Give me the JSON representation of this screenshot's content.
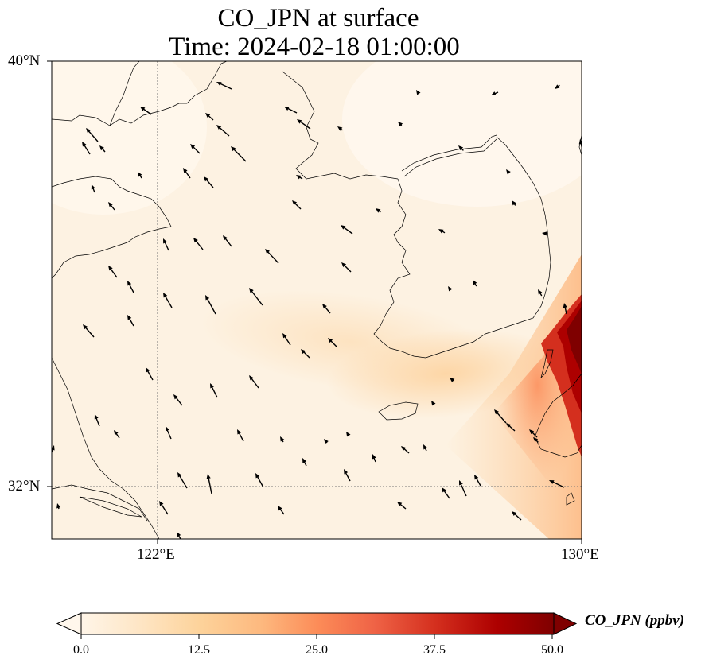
{
  "title": {
    "line1": "CO_JPN at surface",
    "line2": "Time: 2024-02-18 01:00:00"
  },
  "axes": {
    "lat_ticks": [
      "40°N",
      "32°N"
    ],
    "lon_ticks": [
      "122°E",
      "130°E"
    ],
    "lon_range": [
      120,
      130
    ],
    "lat_range": [
      31,
      40
    ],
    "gridlines": "dotted"
  },
  "colorbar": {
    "label": "CO_JPN (ppbv)",
    "tick_labels": [
      "0.0",
      "12.5",
      "25.0",
      "37.5",
      "50.0"
    ],
    "vmin": 0,
    "vmax": 50,
    "colormap": "OrRd",
    "extend": "both",
    "colors": [
      "#fff7ec",
      "#fee8c8",
      "#fdd49e",
      "#fdbb84",
      "#fc8d59",
      "#ef6548",
      "#d7301f",
      "#b30000",
      "#7f0000"
    ]
  },
  "wind_vectors": {
    "type": "quiver",
    "color": "#000000"
  }
}
